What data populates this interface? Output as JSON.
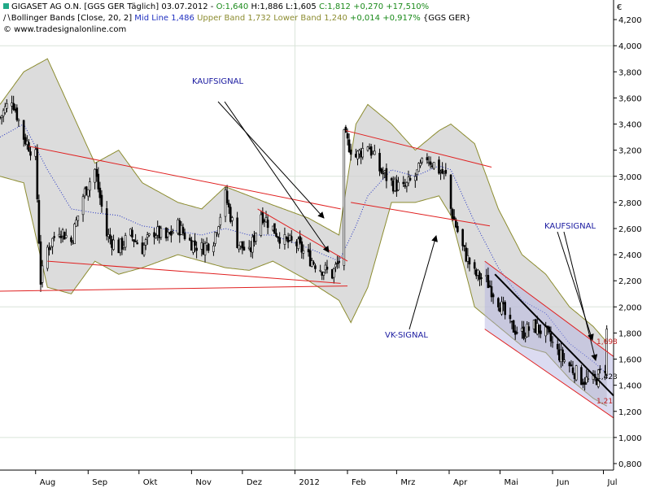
{
  "header": {
    "line1": {
      "prefix": "GIGASET AG O.N. [GGS GER  Täglich] 03.07.2012 - ",
      "open": "O:1,640",
      "high": "H:1,886",
      "low": "L:1,605",
      "close": "C:1,812",
      "change": "+0,270 +17,510%"
    },
    "line2": {
      "indicator": "Bollinger Bands [Close, 20, 2]",
      "mid": "Mid Line 1,486",
      "upper": "Upper Band 1,732",
      "lower": "Lower Band 1,240",
      "change": "+0,014 +0,917%",
      "symbol": "{GGS GER}"
    },
    "line3": "© www.tradesignalonline.com"
  },
  "colors": {
    "background": "#ffffff",
    "grid": "#d9e4d9",
    "band_fill": "#d0d0d0",
    "band_edge": "#8c8c30",
    "mid_line": "#2030c0",
    "candle": "#000000",
    "trend_red": "#e02020",
    "trend_black": "#000000",
    "channel_fill": "#b0b0e0",
    "label_price": "#c02020",
    "annotation": "#1a1aa0"
  },
  "annotations": {
    "kauf1": "KAUFSIGNAL",
    "vk": "VK-SIGNAL",
    "kauf2": "KAUFSIGNAL"
  },
  "price_labels": {
    "p1": "1,698",
    "p2": "1,423",
    "p3": "1,21"
  },
  "chart_data": {
    "type": "candlestick",
    "instrument": "GIGASET AG O.N.",
    "currency_symbol": "€",
    "y_range": [
      0.75,
      4.35
    ],
    "y_ticks": [
      0.8,
      1.0,
      1.2,
      1.4,
      1.6,
      1.8,
      2.0,
      2.2,
      2.4,
      2.6,
      2.8,
      3.0,
      3.2,
      3.4,
      3.6,
      3.8,
      4.0,
      4.2
    ],
    "y_tick_labels": [
      "0,800",
      "1,000",
      "1,200",
      "1,400",
      "1,600",
      "1,800",
      "2,000",
      "2,200",
      "2,400",
      "2,600",
      "2,800",
      "3,000",
      "3,200",
      "3,400",
      "3,600",
      "3,800",
      "4,000",
      "4,200"
    ],
    "x_range": [
      "2011-07-11",
      "2012-07-07"
    ],
    "month_ticks": [
      {
        "date": "2011-08-01",
        "label": "Aug"
      },
      {
        "date": "2011-09-01",
        "label": "Sep"
      },
      {
        "date": "2011-10-01",
        "label": "Okt"
      },
      {
        "date": "2011-11-01",
        "label": "Nov"
      },
      {
        "date": "2011-12-01",
        "label": "Dez"
      },
      {
        "date": "2012-01-01",
        "label": "2012"
      },
      {
        "date": "2012-02-01",
        "label": "Feb"
      },
      {
        "date": "2012-03-01",
        "label": "Mrz"
      },
      {
        "date": "2012-04-01",
        "label": "Apr"
      },
      {
        "date": "2012-05-01",
        "label": "Mai"
      },
      {
        "date": "2012-06-01",
        "label": "Jun"
      },
      {
        "date": "2012-07-01",
        "label": "Jul"
      }
    ],
    "close_anchors": [
      [
        "2011-07-11",
        3.45
      ],
      [
        "2011-07-18",
        3.6
      ],
      [
        "2011-07-25",
        3.3
      ],
      [
        "2011-08-01",
        3.15
      ],
      [
        "2011-08-04",
        2.2
      ],
      [
        "2011-08-08",
        2.45
      ],
      [
        "2011-08-15",
        2.6
      ],
      [
        "2011-08-22",
        2.5
      ],
      [
        "2011-08-29",
        2.85
      ],
      [
        "2011-09-05",
        3.05
      ],
      [
        "2011-09-12",
        2.55
      ],
      [
        "2011-09-19",
        2.45
      ],
      [
        "2011-09-26",
        2.55
      ],
      [
        "2011-10-03",
        2.45
      ],
      [
        "2011-10-10",
        2.58
      ],
      [
        "2011-10-17",
        2.52
      ],
      [
        "2011-10-24",
        2.62
      ],
      [
        "2011-10-31",
        2.5
      ],
      [
        "2011-11-07",
        2.45
      ],
      [
        "2011-11-14",
        2.52
      ],
      [
        "2011-11-21",
        2.85
      ],
      [
        "2011-11-28",
        2.5
      ],
      [
        "2011-12-05",
        2.4
      ],
      [
        "2011-12-12",
        2.72
      ],
      [
        "2011-12-19",
        2.6
      ],
      [
        "2011-12-26",
        2.5
      ],
      [
        "2012-01-02",
        2.48
      ],
      [
        "2012-01-09",
        2.38
      ],
      [
        "2012-01-16",
        2.3
      ],
      [
        "2012-01-23",
        2.25
      ],
      [
        "2012-01-27",
        2.35
      ],
      [
        "2012-01-30",
        3.3
      ],
      [
        "2012-02-06",
        3.15
      ],
      [
        "2012-02-13",
        3.25
      ],
      [
        "2012-02-20",
        3.05
      ],
      [
        "2012-02-27",
        2.95
      ],
      [
        "2012-03-05",
        2.9
      ],
      [
        "2012-03-12",
        3.0
      ],
      [
        "2012-03-19",
        3.15
      ],
      [
        "2012-03-26",
        3.05
      ],
      [
        "2012-03-30",
        3.0
      ],
      [
        "2012-04-02",
        2.75
      ],
      [
        "2012-04-09",
        2.45
      ],
      [
        "2012-04-16",
        2.25
      ],
      [
        "2012-04-23",
        2.2
      ],
      [
        "2012-04-30",
        2.05
      ],
      [
        "2012-05-07",
        1.85
      ],
      [
        "2012-05-14",
        1.8
      ],
      [
        "2012-05-21",
        1.85
      ],
      [
        "2012-05-28",
        1.8
      ],
      [
        "2012-06-04",
        1.65
      ],
      [
        "2012-06-11",
        1.55
      ],
      [
        "2012-06-18",
        1.45
      ],
      [
        "2012-06-25",
        1.42
      ],
      [
        "2012-07-02",
        1.54
      ],
      [
        "2012-07-03",
        1.81
      ]
    ],
    "bollinger_upper_anchors": [
      [
        "2011-07-11",
        3.55
      ],
      [
        "2011-07-25",
        3.8
      ],
      [
        "2011-08-08",
        3.9
      ],
      [
        "2011-08-22",
        3.5
      ],
      [
        "2011-09-05",
        3.1
      ],
      [
        "2011-09-19",
        3.2
      ],
      [
        "2011-10-03",
        2.95
      ],
      [
        "2011-10-24",
        2.8
      ],
      [
        "2011-11-07",
        2.75
      ],
      [
        "2011-11-21",
        2.92
      ],
      [
        "2011-12-05",
        2.85
      ],
      [
        "2011-12-19",
        2.78
      ],
      [
        "2012-01-09",
        2.68
      ],
      [
        "2012-01-27",
        2.55
      ],
      [
        "2012-02-06",
        3.4
      ],
      [
        "2012-02-13",
        3.55
      ],
      [
        "2012-02-27",
        3.4
      ],
      [
        "2012-03-12",
        3.2
      ],
      [
        "2012-03-26",
        3.35
      ],
      [
        "2012-04-02",
        3.4
      ],
      [
        "2012-04-16",
        3.25
      ],
      [
        "2012-04-30",
        2.75
      ],
      [
        "2012-05-14",
        2.4
      ],
      [
        "2012-05-28",
        2.25
      ],
      [
        "2012-06-11",
        2.0
      ],
      [
        "2012-06-25",
        1.85
      ],
      [
        "2012-07-03",
        1.73
      ]
    ],
    "bollinger_lower_anchors": [
      [
        "2011-07-11",
        3.0
      ],
      [
        "2011-07-25",
        2.95
      ],
      [
        "2011-08-08",
        2.15
      ],
      [
        "2011-08-22",
        2.1
      ],
      [
        "2011-09-05",
        2.35
      ],
      [
        "2011-09-19",
        2.25
      ],
      [
        "2011-10-03",
        2.3
      ],
      [
        "2011-10-24",
        2.4
      ],
      [
        "2011-11-07",
        2.35
      ],
      [
        "2011-11-21",
        2.3
      ],
      [
        "2011-12-05",
        2.28
      ],
      [
        "2011-12-19",
        2.35
      ],
      [
        "2012-01-09",
        2.2
      ],
      [
        "2012-01-27",
        2.05
      ],
      [
        "2012-02-03",
        1.88
      ],
      [
        "2012-02-13",
        2.15
      ],
      [
        "2012-02-27",
        2.8
      ],
      [
        "2012-03-12",
        2.8
      ],
      [
        "2012-03-26",
        2.85
      ],
      [
        "2012-04-02",
        2.7
      ],
      [
        "2012-04-16",
        2.0
      ],
      [
        "2012-04-30",
        1.85
      ],
      [
        "2012-05-14",
        1.7
      ],
      [
        "2012-05-28",
        1.65
      ],
      [
        "2012-06-11",
        1.45
      ],
      [
        "2012-06-25",
        1.3
      ],
      [
        "2012-07-03",
        1.24
      ]
    ],
    "bollinger_mid_anchors": [
      [
        "2011-07-11",
        3.3
      ],
      [
        "2011-07-25",
        3.4
      ],
      [
        "2011-08-08",
        3.05
      ],
      [
        "2011-08-22",
        2.75
      ],
      [
        "2011-09-05",
        2.72
      ],
      [
        "2011-09-19",
        2.7
      ],
      [
        "2011-10-03",
        2.62
      ],
      [
        "2011-10-24",
        2.58
      ],
      [
        "2011-11-07",
        2.55
      ],
      [
        "2011-11-21",
        2.6
      ],
      [
        "2011-12-05",
        2.55
      ],
      [
        "2011-12-19",
        2.55
      ],
      [
        "2012-01-09",
        2.45
      ],
      [
        "2012-01-27",
        2.35
      ],
      [
        "2012-02-06",
        2.62
      ],
      [
        "2012-02-13",
        2.85
      ],
      [
        "2012-02-27",
        3.05
      ],
      [
        "2012-03-12",
        3.0
      ],
      [
        "2012-03-26",
        3.08
      ],
      [
        "2012-04-02",
        3.05
      ],
      [
        "2012-04-16",
        2.65
      ],
      [
        "2012-04-30",
        2.3
      ],
      [
        "2012-05-14",
        2.05
      ],
      [
        "2012-05-28",
        1.95
      ],
      [
        "2012-06-11",
        1.72
      ],
      [
        "2012-06-25",
        1.58
      ],
      [
        "2012-07-03",
        1.49
      ]
    ],
    "trend_lines": [
      {
        "color": "red",
        "from": [
          "2011-07-28",
          3.23
        ],
        "to": [
          "2012-01-28",
          2.75
        ]
      },
      {
        "color": "red",
        "from": [
          "2011-08-08",
          2.35
        ],
        "to": [
          "2012-01-28",
          2.18
        ]
      },
      {
        "color": "red",
        "from": [
          "2011-07-11",
          2.12
        ],
        "to": [
          "2012-02-01",
          2.16
        ]
      },
      {
        "color": "red",
        "from": [
          "2011-12-10",
          2.75
        ],
        "to": [
          "2012-02-01",
          2.35
        ]
      },
      {
        "color": "red",
        "from": [
          "2012-01-31",
          3.35
        ],
        "to": [
          "2012-04-26",
          3.07
        ]
      },
      {
        "color": "red",
        "from": [
          "2012-02-03",
          2.8
        ],
        "to": [
          "2012-04-25",
          2.62
        ]
      },
      {
        "color": "red",
        "from": [
          "2012-04-22",
          2.35
        ],
        "to": [
          "2012-07-07",
          1.62
        ]
      },
      {
        "color": "red",
        "from": [
          "2012-04-22",
          1.83
        ],
        "to": [
          "2012-07-07",
          1.15
        ]
      },
      {
        "color": "black",
        "from": [
          "2012-04-28",
          2.25
        ],
        "to": [
          "2012-07-07",
          1.32
        ]
      }
    ],
    "channel": {
      "upper": [
        [
          "2012-04-22",
          2.35
        ],
        [
          "2012-07-07",
          1.62
        ]
      ],
      "lower": [
        [
          "2012-04-22",
          1.83
        ],
        [
          "2012-07-07",
          1.15
        ]
      ]
    }
  }
}
